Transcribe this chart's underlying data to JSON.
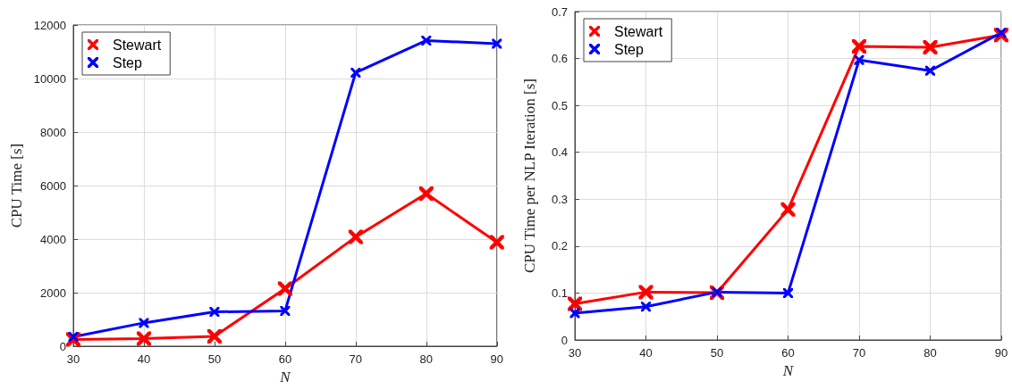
{
  "chart_data": [
    {
      "type": "line",
      "xlabel": "N",
      "ylabel": "CPU Time [s]",
      "x": [
        30,
        40,
        50,
        60,
        70,
        80,
        90
      ],
      "xlim": [
        30,
        90
      ],
      "xticks": [
        30,
        40,
        50,
        60,
        70,
        80,
        90
      ],
      "ylim": [
        0,
        12000
      ],
      "yticks": [
        0,
        2000,
        4000,
        6000,
        8000,
        10000,
        12000
      ],
      "grid": true,
      "legend": "top left",
      "marker": "cross",
      "line_style": "solid",
      "series": [
        {
          "name": "Stewart",
          "color": "#ff0000",
          "values": [
            250,
            280,
            370,
            2150,
            4080,
            5700,
            3880
          ]
        },
        {
          "name": "Step",
          "color": "#0000ff",
          "values": [
            350,
            870,
            1280,
            1320,
            10220,
            11420,
            11300
          ]
        }
      ]
    },
    {
      "type": "line",
      "xlabel": "N",
      "ylabel": "CPU Time per NLP Iteration [s]",
      "x": [
        30,
        40,
        50,
        60,
        70,
        80,
        90
      ],
      "xlim": [
        30,
        90
      ],
      "xticks": [
        30,
        40,
        50,
        60,
        70,
        80,
        90
      ],
      "ylim": [
        0,
        0.7
      ],
      "yticks": [
        0,
        0.1,
        0.2,
        0.3,
        0.4,
        0.5,
        0.6,
        0.7
      ],
      "grid": true,
      "legend": "top left",
      "marker": "cross",
      "line_style": "solid",
      "series": [
        {
          "name": "Stewart",
          "color": "#ff0000",
          "values": [
            0.077,
            0.102,
            0.101,
            0.278,
            0.626,
            0.624,
            0.65
          ]
        },
        {
          "name": "Step",
          "color": "#0000ff",
          "values": [
            0.057,
            0.071,
            0.102,
            0.1,
            0.597,
            0.574,
            0.655
          ]
        }
      ]
    }
  ]
}
